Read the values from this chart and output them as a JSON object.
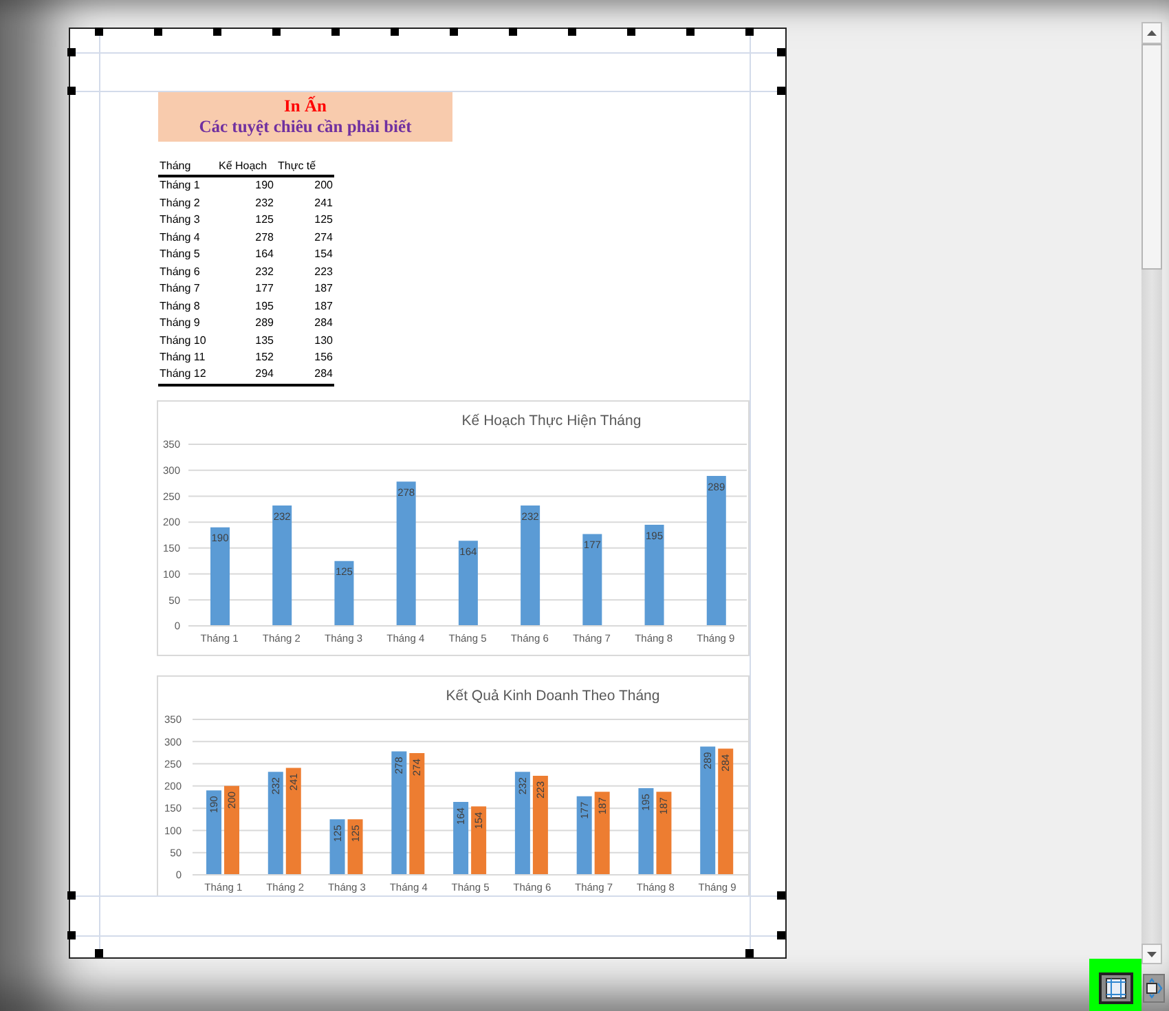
{
  "chart_data": [
    {
      "type": "other",
      "title": "In Ấn",
      "subtitle": "Các tuyệt chiêu cần phải biết",
      "xlabel": "Tháng",
      "categories": [
        "Tháng 1",
        "Tháng 2",
        "Tháng 3",
        "Tháng 4",
        "Tháng 5",
        "Tháng 6",
        "Tháng 7",
        "Tháng 8",
        "Tháng 9",
        "Tháng 10",
        "Tháng 11",
        "Tháng 12"
      ],
      "series": [
        {
          "name": "Kế Hoạch",
          "values": [
            190,
            232,
            125,
            278,
            164,
            232,
            177,
            195,
            289,
            135,
            152,
            294
          ]
        },
        {
          "name": "Thực tế",
          "values": [
            200,
            241,
            125,
            274,
            154,
            223,
            187,
            187,
            284,
            130,
            156,
            284
          ]
        }
      ],
      "data_labels": true
    },
    {
      "type": "bar",
      "title": "Kế Hoạch Thực Hiện Tháng",
      "categories": [
        "Tháng 1",
        "Tháng 2",
        "Tháng 3",
        "Tháng 4",
        "Tháng 5",
        "Tháng 6",
        "Tháng 7",
        "Tháng 8",
        "Tháng 9"
      ],
      "series": [
        {
          "color": "#5b9bd5",
          "values": [
            190,
            232,
            125,
            278,
            164,
            232,
            177,
            195,
            289
          ]
        }
      ],
      "ylim": [
        0,
        350
      ],
      "yticks": [
        0,
        50,
        100,
        150,
        200,
        250,
        300,
        350
      ],
      "grid": "y",
      "data_labels": true
    },
    {
      "type": "bar",
      "title": "Kết Quả Kinh Doanh Theo Tháng",
      "categories": [
        "Tháng 1",
        "Tháng 2",
        "Tháng 3",
        "Tháng 4",
        "Tháng 5",
        "Tháng 6",
        "Tháng 7",
        "Tháng 8",
        "Tháng 9"
      ],
      "series": [
        {
          "color": "#5b9bd5",
          "values": [
            190,
            232,
            125,
            278,
            164,
            232,
            177,
            195,
            289
          ]
        },
        {
          "color": "#ed7d31",
          "values": [
            200,
            241,
            125,
            274,
            154,
            223,
            187,
            187,
            284
          ]
        }
      ],
      "ylim": [
        0,
        350
      ],
      "yticks": [
        0,
        50,
        100,
        150,
        200,
        250,
        300,
        350
      ],
      "grid": "y",
      "data_labels": true
    }
  ]
}
